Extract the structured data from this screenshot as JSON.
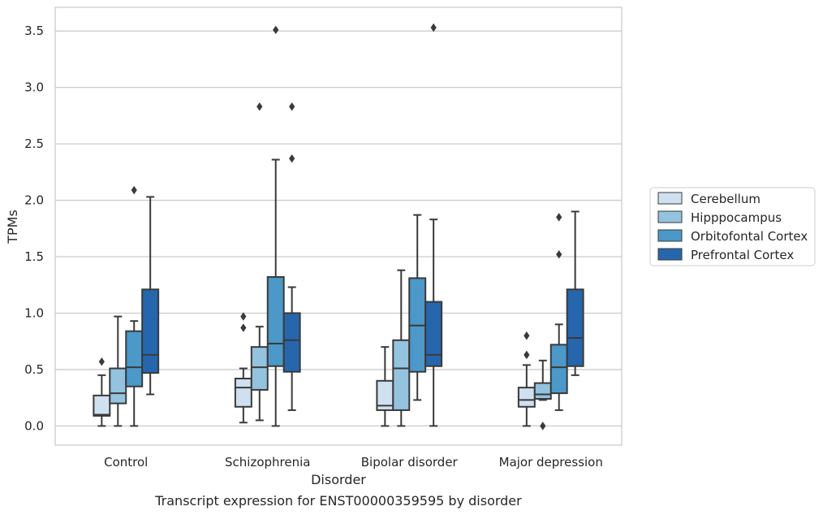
{
  "chart_data": {
    "type": "box",
    "title": "",
    "caption": "Transcript expression for ENST00000359595 by disorder",
    "xlabel": "Disorder",
    "ylabel": "TPMs",
    "ylim": [
      -0.17,
      3.71
    ],
    "yticks": [
      "0.0",
      "0.5",
      "1.0",
      "1.5",
      "2.0",
      "2.5",
      "3.0",
      "3.5"
    ],
    "grid": "horizontal",
    "legend_position": "right",
    "categories": [
      "Control",
      "Schizophrenia",
      "Bipolar disorder",
      "Major depression"
    ],
    "series": [
      {
        "name": "Cerebellum",
        "color": "#cfe0f1",
        "boxes": [
          {
            "whisker_low": 0.0,
            "q1": 0.09,
            "median": 0.1,
            "q3": 0.27,
            "whisker_high": 0.45,
            "outliers": [
              0.57
            ]
          },
          {
            "whisker_low": 0.03,
            "q1": 0.17,
            "median": 0.34,
            "q3": 0.42,
            "whisker_high": 0.51,
            "outliers": [
              0.87,
              0.97
            ]
          },
          {
            "whisker_low": 0.0,
            "q1": 0.14,
            "median": 0.18,
            "q3": 0.4,
            "whisker_high": 0.7,
            "outliers": []
          },
          {
            "whisker_low": 0.0,
            "q1": 0.17,
            "median": 0.23,
            "q3": 0.34,
            "whisker_high": 0.54,
            "outliers": [
              0.63,
              0.8
            ]
          }
        ]
      },
      {
        "name": "Hipppocampus",
        "color": "#93c3df",
        "boxes": [
          {
            "whisker_low": 0.0,
            "q1": 0.2,
            "median": 0.29,
            "q3": 0.51,
            "whisker_high": 0.97,
            "outliers": []
          },
          {
            "whisker_low": 0.05,
            "q1": 0.32,
            "median": 0.52,
            "q3": 0.7,
            "whisker_high": 0.88,
            "outliers": [
              2.83
            ]
          },
          {
            "whisker_low": 0.0,
            "q1": 0.14,
            "median": 0.51,
            "q3": 0.76,
            "whisker_high": 1.38,
            "outliers": []
          },
          {
            "whisker_low": 0.23,
            "q1": 0.24,
            "median": 0.28,
            "q3": 0.38,
            "whisker_high": 0.58,
            "outliers": [
              0.0
            ]
          }
        ]
      },
      {
        "name": "Orbitofontal Cortex",
        "color": "#4b98c9",
        "boxes": [
          {
            "whisker_low": 0.0,
            "q1": 0.35,
            "median": 0.52,
            "q3": 0.84,
            "whisker_high": 0.93,
            "outliers": [
              2.09
            ]
          },
          {
            "whisker_low": 0.0,
            "q1": 0.53,
            "median": 0.73,
            "q3": 1.32,
            "whisker_high": 2.36,
            "outliers": [
              3.51
            ]
          },
          {
            "whisker_low": 0.23,
            "q1": 0.48,
            "median": 0.89,
            "q3": 1.31,
            "whisker_high": 1.87,
            "outliers": []
          },
          {
            "whisker_low": 0.14,
            "q1": 0.29,
            "median": 0.52,
            "q3": 0.72,
            "whisker_high": 0.9,
            "outliers": [
              1.52,
              1.85
            ]
          }
        ]
      },
      {
        "name": "Prefrontal Cortex",
        "color": "#2666ac",
        "boxes": [
          {
            "whisker_low": 0.28,
            "q1": 0.47,
            "median": 0.63,
            "q3": 1.21,
            "whisker_high": 2.03,
            "outliers": []
          },
          {
            "whisker_low": 0.14,
            "q1": 0.48,
            "median": 0.76,
            "q3": 1.0,
            "whisker_high": 1.23,
            "outliers": [
              2.37,
              2.83
            ]
          },
          {
            "whisker_low": 0.0,
            "q1": 0.53,
            "median": 0.63,
            "q3": 1.1,
            "whisker_high": 1.83,
            "outliers": [
              3.53
            ]
          },
          {
            "whisker_low": 0.45,
            "q1": 0.53,
            "median": 0.78,
            "q3": 1.21,
            "whisker_high": 1.9,
            "outliers": []
          }
        ]
      }
    ]
  }
}
